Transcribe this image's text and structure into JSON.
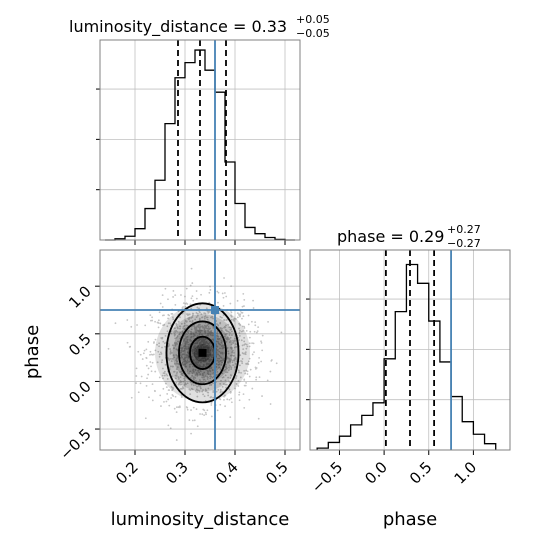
{
  "chart_data": {
    "type": "corner",
    "parameters": [
      "luminosity_distance",
      "phase"
    ],
    "truths": {
      "luminosity_distance": 0.36,
      "phase": 0.75
    },
    "panels": [
      {
        "id": "hist-luminosity_distance",
        "type": "histogram",
        "title": {
          "main": "luminosity_distance = 0.33",
          "sup": "+0.05",
          "sub": "−0.05"
        },
        "xlim": [
          0.13,
          0.53
        ],
        "ylim": [
          0,
          318
        ],
        "bin_edges": [
          0.14,
          0.16,
          0.18,
          0.2,
          0.22,
          0.24,
          0.26,
          0.28,
          0.3,
          0.32,
          0.34,
          0.36,
          0.38,
          0.4,
          0.42,
          0.44,
          0.46,
          0.48,
          0.5,
          0.52
        ],
        "counts": [
          0,
          2,
          6,
          18,
          50,
          95,
          185,
          258,
          282,
          302,
          270,
          235,
          124,
          58,
          20,
          10,
          4,
          1,
          0
        ],
        "quantiles": [
          0.286,
          0.33,
          0.382
        ],
        "truth": 0.36,
        "grid": true
      },
      {
        "id": "hist-phase",
        "type": "histogram",
        "title": {
          "main": "phase = 0.29",
          "sup": "+0.27",
          "sub": "−0.27"
        },
        "xlim": [
          -0.83,
          1.41
        ],
        "ylim": [
          0,
          318
        ],
        "bin_edges": [
          -0.75,
          -0.625,
          -0.5,
          -0.375,
          -0.25,
          -0.125,
          0.0,
          0.125,
          0.25,
          0.375,
          0.5,
          0.625,
          0.75,
          0.875,
          1.0,
          1.125,
          1.25
        ],
        "counts": [
          3,
          12,
          22,
          40,
          55,
          75,
          145,
          220,
          295,
          265,
          205,
          140,
          85,
          45,
          25,
          10
        ],
        "quantiles": [
          0.02,
          0.29,
          0.56
        ],
        "truth": 0.75,
        "grid": true
      },
      {
        "id": "scatter-luminosity_distance-phase",
        "type": "2d-density",
        "xlim": [
          0.13,
          0.53
        ],
        "ylim": [
          -0.72,
          1.38
        ],
        "center": [
          0.335,
          0.3
        ],
        "contour_levels": [
          {
            "rx": 0.025,
            "ry": 0.17
          },
          {
            "rx": 0.047,
            "ry": 0.33
          },
          {
            "rx": 0.072,
            "ry": 0.52
          }
        ],
        "truth": [
          0.36,
          0.75
        ],
        "grid": true
      }
    ],
    "x_axes": {
      "luminosity_distance": {
        "ticks": [
          0.2,
          0.3,
          0.4,
          0.5
        ],
        "tick_labels": [
          "0.2",
          "0.3",
          "0.4",
          "0.5"
        ],
        "label": "luminosity_distance"
      },
      "phase": {
        "ticks": [
          -0.5,
          0.0,
          0.5,
          1.0
        ],
        "tick_labels": [
          "−0.5",
          "0.0",
          "0.5",
          "1.0"
        ],
        "label": "phase"
      }
    },
    "y_axes": {
      "phase": {
        "ticks": [
          -0.5,
          0.0,
          0.5,
          1.0
        ],
        "tick_labels": [
          "−0.5",
          "0.0",
          "0.5",
          "1.0"
        ],
        "label": "phase"
      }
    },
    "colors": {
      "truth": "#4682b4",
      "hist": "#000000",
      "quantile": "#000000",
      "grid": "#c0c0c0",
      "scatter": "#808080"
    }
  }
}
